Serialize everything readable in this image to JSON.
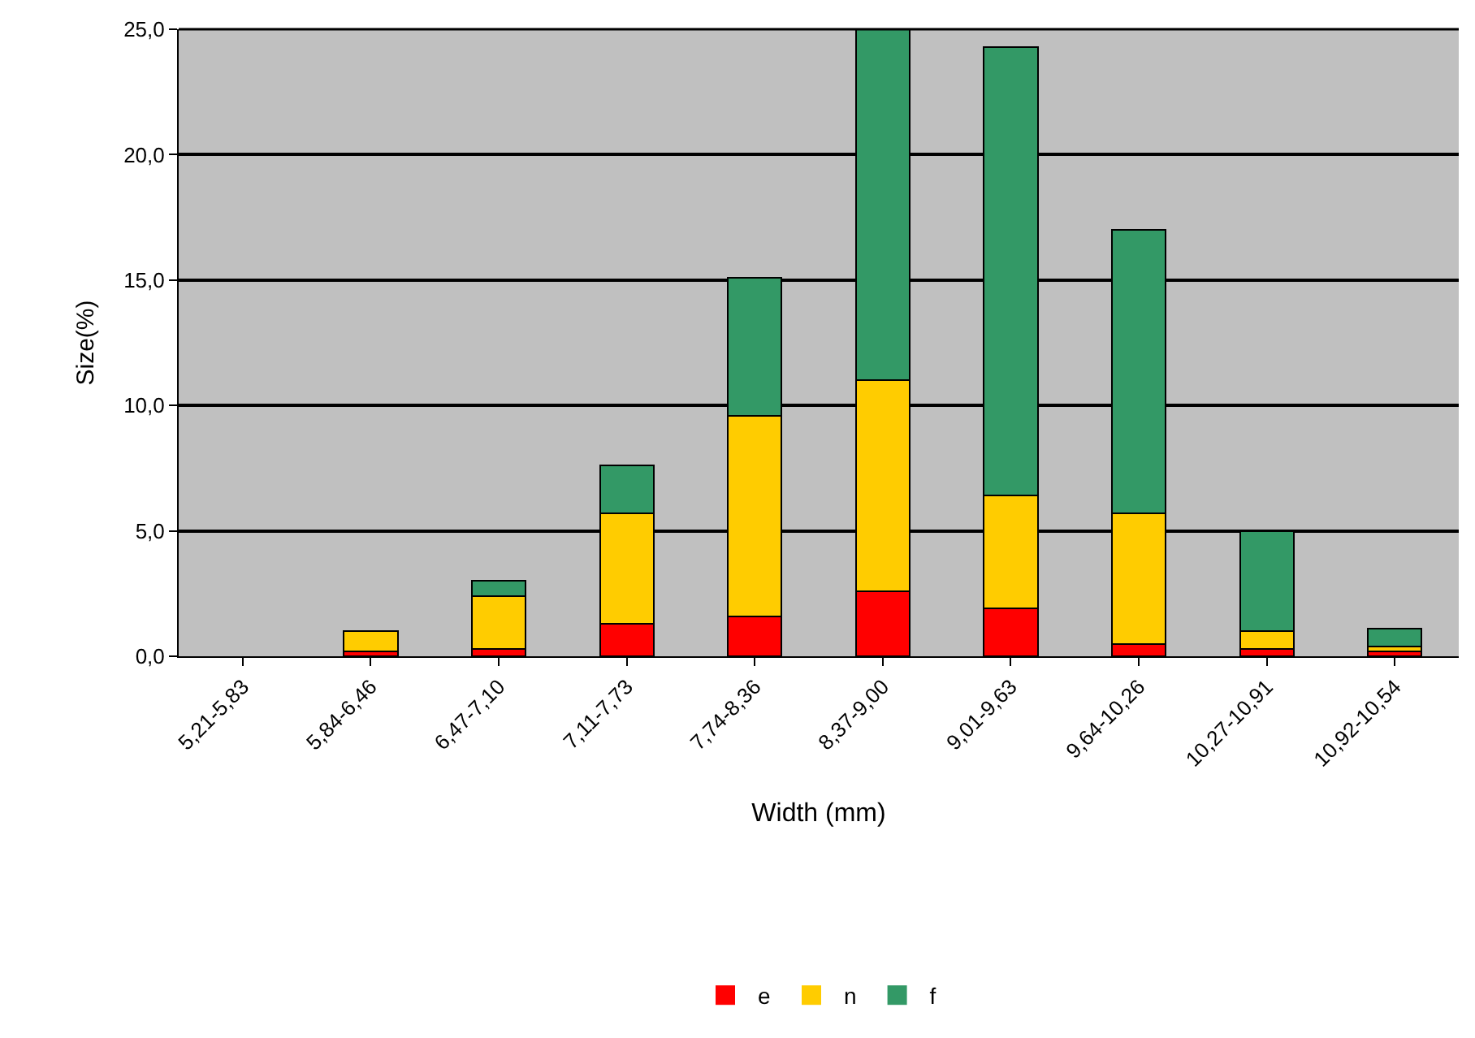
{
  "chart_data": {
    "type": "bar",
    "stacked": true,
    "xlabel": "Width (mm)",
    "ylabel": "Size(%)",
    "categories": [
      "5,21-5,83",
      "5,84-6,46",
      "6,47-7,10",
      "7,11-7,73",
      "7,74-8,36",
      "8,37-9,00",
      "9,01-9,63",
      "9,64-10,26",
      "10,27-10,91",
      "10,92-10,54"
    ],
    "series": [
      {
        "name": "e",
        "color": "#ff0000",
        "values": [
          0,
          0.2,
          0.3,
          1.3,
          1.6,
          2.6,
          1.9,
          0.5,
          0.3,
          0.2
        ]
      },
      {
        "name": "n",
        "color": "#ffcc00",
        "values": [
          0,
          0.8,
          2.1,
          4.4,
          8.0,
          8.4,
          4.5,
          5.2,
          0.7,
          0.2
        ]
      },
      {
        "name": "f",
        "color": "#339966",
        "values": [
          0,
          0,
          0.6,
          1.9,
          5.5,
          14.0,
          17.9,
          11.3,
          4.0,
          0.7
        ]
      }
    ],
    "ylim": [
      0,
      25
    ],
    "yticks": [
      {
        "value": 0,
        "label": "0,0"
      },
      {
        "value": 5,
        "label": "5,0"
      },
      {
        "value": 10,
        "label": "10,0"
      },
      {
        "value": 15,
        "label": "15,0"
      },
      {
        "value": 20,
        "label": "20,0"
      },
      {
        "value": 25,
        "label": "25,0"
      }
    ],
    "grid": "y",
    "legend": "bottom"
  }
}
